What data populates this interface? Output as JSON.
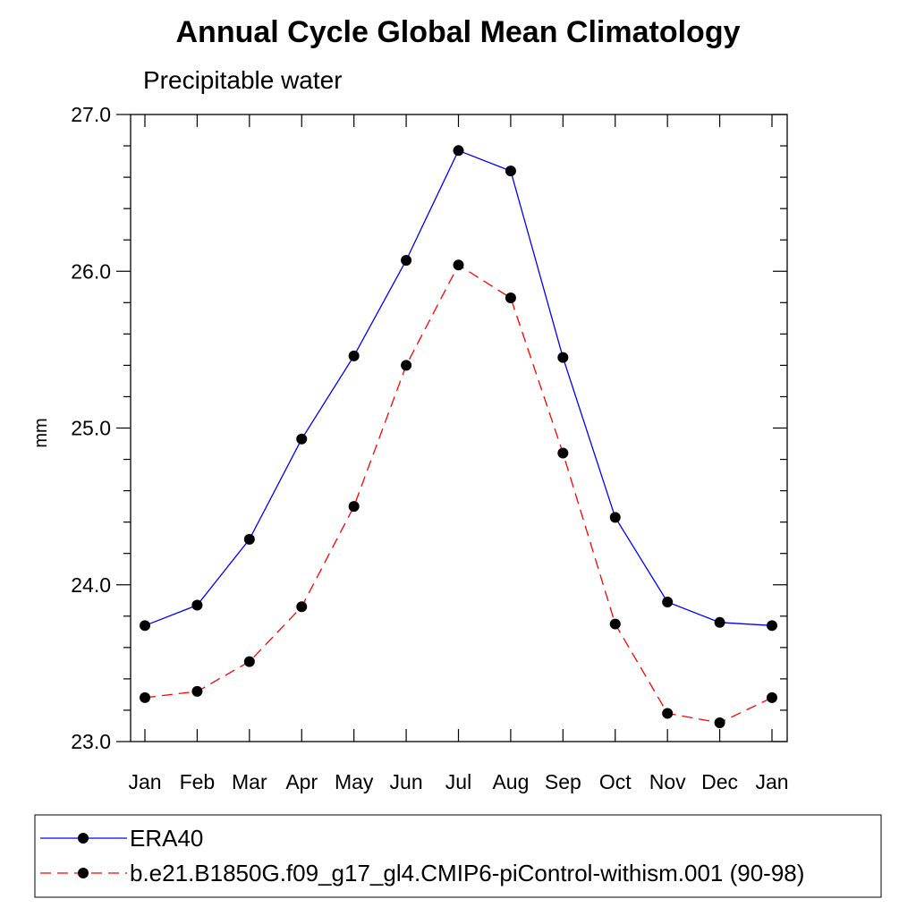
{
  "chart_data": {
    "type": "line",
    "title": "Annual Cycle Global Mean Climatology",
    "subtitle": "Precipitable water",
    "xlabel": "",
    "ylabel": "mm",
    "categories": [
      "Jan",
      "Feb",
      "Mar",
      "Apr",
      "May",
      "Jun",
      "Jul",
      "Aug",
      "Sep",
      "Oct",
      "Nov",
      "Dec",
      "Jan"
    ],
    "ylim": [
      23.0,
      27.0
    ],
    "yticks": [
      "23.0",
      "24.0",
      "25.0",
      "26.0",
      "27.0"
    ],
    "grid": false,
    "legend_position": "bottom",
    "series": [
      {
        "name": "ERA40",
        "color": "#0000ff",
        "dash": "solid",
        "marker": "filled-circle",
        "values": [
          23.74,
          23.87,
          24.29,
          24.93,
          25.46,
          26.07,
          26.77,
          26.64,
          25.45,
          24.43,
          23.89,
          23.76,
          23.74
        ]
      },
      {
        "name": "b.e21.B1850G.f09_g17_gl4.CMIP6-piControl-withism.001 (90-98)",
        "color": "#ff0000",
        "dash": "dashed",
        "marker": "filled-circle",
        "values": [
          23.28,
          23.32,
          23.51,
          23.86,
          24.5,
          25.4,
          26.04,
          25.83,
          24.84,
          23.75,
          23.18,
          23.12,
          23.28
        ]
      }
    ]
  }
}
